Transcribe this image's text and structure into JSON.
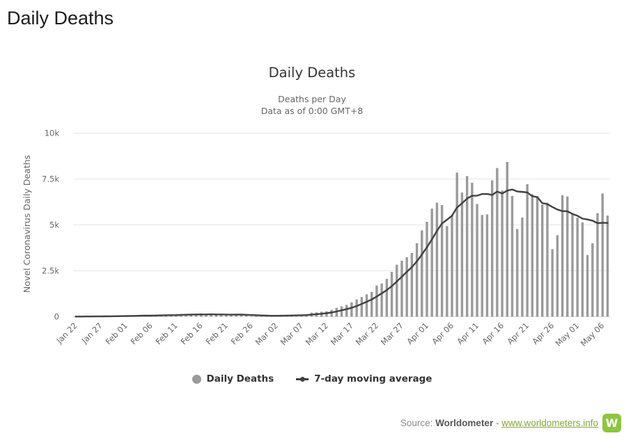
{
  "page": {
    "title": "Daily Deaths"
  },
  "chart": {
    "title": "Daily Deaths",
    "subtitle_line1": "Deaths per Day",
    "subtitle_line2": "Data as of 0:00 GMT+8",
    "y_axis_title": "Novel Coronavirus Daily Deaths",
    "legend": [
      {
        "label": "Daily Deaths",
        "marker": "gray-dot",
        "color": "#9a9a9a"
      },
      {
        "label": "7-day moving average",
        "marker": "dark-line-dot",
        "color": "#404040"
      }
    ],
    "colors": {
      "bar": "#9a9a9a",
      "line": "#404040",
      "grid": "#e6e6e6",
      "axis_line": "#ccd6eb",
      "tick_label": "#666666",
      "title": "#333333",
      "subtitle": "#666666"
    }
  },
  "chart_data": {
    "type": "bar",
    "title": "Daily Deaths",
    "subtitle": [
      "Deaths per Day",
      "Data as of 0:00 GMT+8"
    ],
    "xlabel": "",
    "ylabel": "Novel Coronavirus Daily Deaths",
    "ylim": [
      0,
      10000
    ],
    "grid": true,
    "legend_position": "bottom",
    "y_ticks": [
      {
        "value": 0,
        "label": "0"
      },
      {
        "value": 2500,
        "label": "2.5k"
      },
      {
        "value": 5000,
        "label": "5k"
      },
      {
        "value": 7500,
        "label": "7.5k"
      },
      {
        "value": 10000,
        "label": "10k"
      }
    ],
    "x_tick_interval": 5,
    "categories": [
      "Jan 22",
      "Jan 23",
      "Jan 24",
      "Jan 25",
      "Jan 26",
      "Jan 27",
      "Jan 28",
      "Jan 29",
      "Jan 30",
      "Jan 31",
      "Feb 01",
      "Feb 02",
      "Feb 03",
      "Feb 04",
      "Feb 05",
      "Feb 06",
      "Feb 07",
      "Feb 08",
      "Feb 09",
      "Feb 10",
      "Feb 11",
      "Feb 12",
      "Feb 13",
      "Feb 14",
      "Feb 15",
      "Feb 16",
      "Feb 17",
      "Feb 18",
      "Feb 19",
      "Feb 20",
      "Feb 21",
      "Feb 22",
      "Feb 23",
      "Feb 24",
      "Feb 25",
      "Feb 26",
      "Feb 27",
      "Feb 28",
      "Feb 29",
      "Mar 01",
      "Mar 02",
      "Mar 03",
      "Mar 04",
      "Mar 05",
      "Mar 06",
      "Mar 07",
      "Mar 08",
      "Mar 09",
      "Mar 10",
      "Mar 11",
      "Mar 12",
      "Mar 13",
      "Mar 14",
      "Mar 15",
      "Mar 16",
      "Mar 17",
      "Mar 18",
      "Mar 19",
      "Mar 20",
      "Mar 21",
      "Mar 22",
      "Mar 23",
      "Mar 24",
      "Mar 25",
      "Mar 26",
      "Mar 27",
      "Mar 28",
      "Mar 29",
      "Mar 30",
      "Mar 31",
      "Apr 01",
      "Apr 02",
      "Apr 03",
      "Apr 04",
      "Apr 05",
      "Apr 06",
      "Apr 07",
      "Apr 08",
      "Apr 09",
      "Apr 10",
      "Apr 11",
      "Apr 12",
      "Apr 13",
      "Apr 14",
      "Apr 15",
      "Apr 16",
      "Apr 17",
      "Apr 18",
      "Apr 19",
      "Apr 20",
      "Apr 21",
      "Apr 22",
      "Apr 23",
      "Apr 24",
      "Apr 25",
      "Apr 26",
      "Apr 27",
      "Apr 28",
      "Apr 29",
      "Apr 30",
      "May 01",
      "May 02",
      "May 03",
      "May 04",
      "May 05",
      "May 06",
      "May 07"
    ],
    "series": [
      {
        "name": "Daily Deaths",
        "type": "column",
        "color": "#9a9a9a",
        "values": [
          9,
          8,
          16,
          15,
          24,
          26,
          26,
          38,
          43,
          46,
          45,
          58,
          64,
          66,
          72,
          73,
          86,
          89,
          97,
          108,
          97,
          146,
          121,
          143,
          142,
          105,
          98,
          136,
          114,
          118,
          109,
          97,
          150,
          71,
          52,
          29,
          44,
          47,
          38,
          58,
          72,
          74,
          81,
          88,
          92,
          99,
          106,
          220,
          236,
          271,
          300,
          370,
          480,
          560,
          640,
          780,
          940,
          1070,
          1220,
          1350,
          1700,
          1810,
          2060,
          2440,
          2830,
          3050,
          3240,
          3470,
          4000,
          4700,
          5170,
          5890,
          6210,
          6080,
          4940,
          5510,
          7850,
          6770,
          7660,
          7300,
          6140,
          5540,
          5570,
          7430,
          8100,
          6870,
          8430,
          6580,
          4780,
          5400,
          7220,
          6670,
          6560,
          6100,
          6210,
          3680,
          4440,
          6620,
          6550,
          5580,
          5390,
          5130,
          3360,
          4000,
          5640,
          6710,
          5510
        ]
      },
      {
        "name": "7-day moving average",
        "type": "line",
        "color": "#404040",
        "derived": "trailing 7-day mean of Daily Deaths"
      }
    ]
  },
  "source": {
    "prefix": "Source: ",
    "name": "Worldometer",
    "separator": " - ",
    "link_text": "www.worldometers.info",
    "logo_letter": "W",
    "link_color": "#82a43c",
    "logo_color": "#8dc63f"
  }
}
